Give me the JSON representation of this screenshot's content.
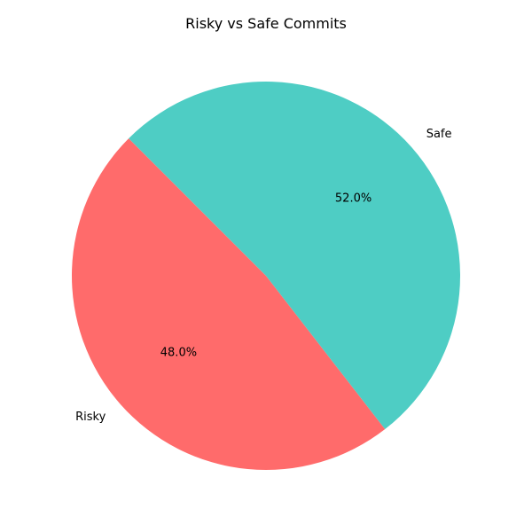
{
  "chart_data": {
    "type": "pie",
    "title": "Risky vs Safe Commits",
    "slices": [
      {
        "label": "Risky",
        "value": 48.0,
        "pct_label": "48.0%",
        "color": "#ff6b6b"
      },
      {
        "label": "Safe",
        "value": 52.0,
        "pct_label": "52.0%",
        "color": "#4ecdc4"
      }
    ],
    "start_angle_deg": 135,
    "direction": "counterclockwise"
  }
}
